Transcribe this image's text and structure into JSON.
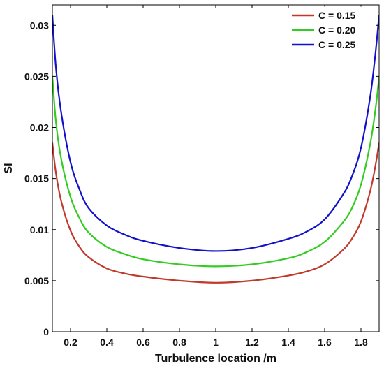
{
  "chart_data": {
    "type": "line",
    "title": "",
    "xlabel": "Turbulence location /m",
    "ylabel": "SI",
    "xlim": [
      0.1,
      1.9
    ],
    "ylim": [
      0,
      0.032
    ],
    "xticks": [
      0.2,
      0.4,
      0.6,
      0.8,
      1.0,
      1.2,
      1.4,
      1.6,
      1.8
    ],
    "xtick_labels": [
      "0.2",
      "0.4",
      "0.6",
      "0.8",
      "1",
      "1.2",
      "1.4",
      "1.6",
      "1.8"
    ],
    "yticks": [
      0,
      0.005,
      0.01,
      0.015,
      0.02,
      0.025,
      0.03
    ],
    "ytick_labels": [
      "0",
      "0.005",
      "0.01",
      "0.015",
      "0.02",
      "0.025",
      "0.03"
    ],
    "grid": false,
    "legend_position": "top-right",
    "x": [
      0.1,
      0.12,
      0.15,
      0.2,
      0.25,
      0.3,
      0.4,
      0.5,
      0.6,
      0.8,
      1.0,
      1.2,
      1.4,
      1.5,
      1.6,
      1.7,
      1.75,
      1.8,
      1.85,
      1.88,
      1.9
    ],
    "series": [
      {
        "name": "C = 0.15",
        "color": "#c0392b",
        "values": [
          0.0185,
          0.0155,
          0.0127,
          0.0099,
          0.0083,
          0.0073,
          0.0062,
          0.0057,
          0.0054,
          0.005,
          0.0048,
          0.005,
          0.0055,
          0.0059,
          0.0066,
          0.008,
          0.0091,
          0.0108,
          0.0137,
          0.0163,
          0.0185
        ]
      },
      {
        "name": "C = 0.20",
        "color": "#33cc22",
        "values": [
          0.025,
          0.0205,
          0.0168,
          0.0132,
          0.0111,
          0.0097,
          0.0083,
          0.0076,
          0.0071,
          0.0066,
          0.0064,
          0.0066,
          0.0072,
          0.0078,
          0.0088,
          0.0107,
          0.0121,
          0.0144,
          0.0183,
          0.0218,
          0.025
        ]
      },
      {
        "name": "C = 0.25",
        "color": "#1111cc",
        "values": [
          0.031,
          0.0258,
          0.0213,
          0.0166,
          0.0139,
          0.0121,
          0.0104,
          0.0095,
          0.0089,
          0.0082,
          0.0079,
          0.0082,
          0.0091,
          0.0098,
          0.011,
          0.0134,
          0.0152,
          0.018,
          0.0229,
          0.0273,
          0.031
        ]
      }
    ]
  }
}
